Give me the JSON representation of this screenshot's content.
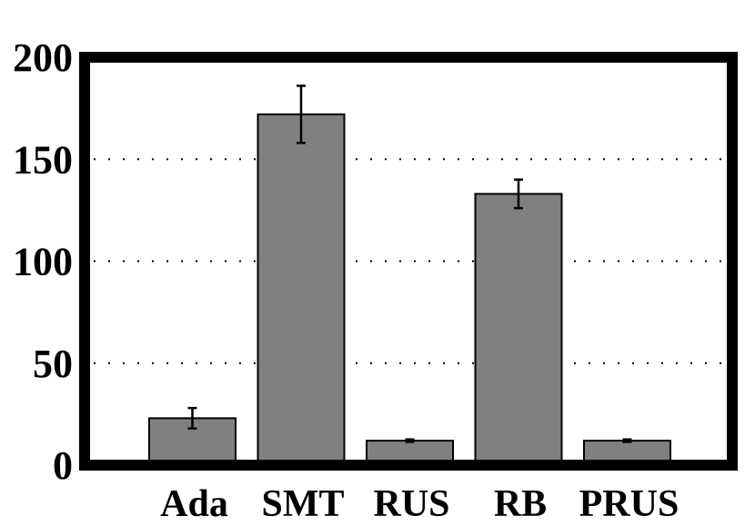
{
  "chart_data": {
    "type": "bar",
    "categories": [
      "Ada",
      "SMT",
      "RUS",
      "RB",
      "PRUS"
    ],
    "values": [
      23,
      172,
      12,
      133,
      12
    ],
    "error": [
      5,
      14,
      0.6,
      7,
      0.6
    ],
    "ylim": [
      0,
      200
    ],
    "yticks": [
      0,
      50,
      100,
      150,
      200
    ],
    "grid": true,
    "title": "",
    "xlabel": "",
    "ylabel": "",
    "colors": {
      "bar": "#808080",
      "edge": "#000000",
      "frame": "#000000"
    }
  }
}
